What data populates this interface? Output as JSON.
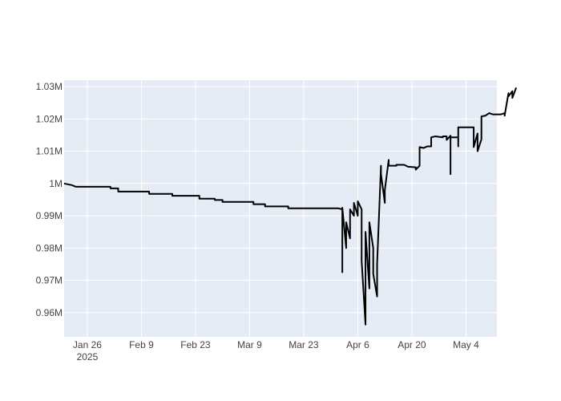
{
  "chart_data": {
    "type": "line",
    "title": "",
    "xlabel": "",
    "ylabel": "",
    "grid": true,
    "legend": "none",
    "colors": {
      "plot_background": "#e5ecf6",
      "grid": "#ffffff",
      "line": "#000000",
      "tick_text": "#444444"
    },
    "xlim": [
      "2025-01-20",
      "2025-05-12"
    ],
    "ylim": [
      952500,
      1032000
    ],
    "x_ticks": [
      {
        "value": "2025-01-26",
        "label": "Jan 26",
        "sublabel": "2025"
      },
      {
        "value": "2025-02-09",
        "label": "Feb 9"
      },
      {
        "value": "2025-02-23",
        "label": "Feb 23"
      },
      {
        "value": "2025-03-09",
        "label": "Mar 9"
      },
      {
        "value": "2025-03-23",
        "label": "Mar 23"
      },
      {
        "value": "2025-04-06",
        "label": "Apr 6"
      },
      {
        "value": "2025-04-20",
        "label": "Apr 20"
      },
      {
        "value": "2025-05-04",
        "label": "May 4"
      }
    ],
    "y_ticks": [
      {
        "value": 960000,
        "label": "0.96M"
      },
      {
        "value": 970000,
        "label": "0.97M"
      },
      {
        "value": 980000,
        "label": "0.98M"
      },
      {
        "value": 990000,
        "label": "0.99M"
      },
      {
        "value": 1000000,
        "label": "1M"
      },
      {
        "value": 1010000,
        "label": "1.01M"
      },
      {
        "value": 1020000,
        "label": "1.02M"
      },
      {
        "value": 1030000,
        "label": "1.03M"
      }
    ],
    "series": [
      {
        "color": "#000000",
        "points": [
          [
            "2025-01-20",
            1000000
          ],
          [
            "2025-01-22",
            999500
          ],
          [
            "2025-01-23",
            999000
          ],
          [
            "2025-01-24",
            999000
          ],
          [
            "2025-02-01",
            999000
          ],
          [
            "2025-02-01",
            998500
          ],
          [
            "2025-02-03",
            998500
          ],
          [
            "2025-02-03",
            997500
          ],
          [
            "2025-02-11",
            997500
          ],
          [
            "2025-02-11",
            996800
          ],
          [
            "2025-02-17",
            996800
          ],
          [
            "2025-02-17",
            996200
          ],
          [
            "2025-02-24",
            996200
          ],
          [
            "2025-02-24",
            995300
          ],
          [
            "2025-02-28",
            995300
          ],
          [
            "2025-02-28",
            994900
          ],
          [
            "2025-03-02",
            994900
          ],
          [
            "2025-03-02",
            994300
          ],
          [
            "2025-03-10",
            994300
          ],
          [
            "2025-03-10",
            993600
          ],
          [
            "2025-03-13",
            993600
          ],
          [
            "2025-03-13",
            992900
          ],
          [
            "2025-03-19",
            992900
          ],
          [
            "2025-03-19",
            992300
          ],
          [
            "2025-04-01",
            992300
          ],
          [
            "2025-04-02",
            992000
          ],
          [
            "2025-04-02",
            972500
          ],
          [
            "2025-04-02",
            992500
          ],
          [
            "2025-04-03",
            980000
          ],
          [
            "2025-04-03",
            988000
          ],
          [
            "2025-04-04",
            983000
          ],
          [
            "2025-04-04",
            992000
          ],
          [
            "2025-04-05",
            990000
          ],
          [
            "2025-04-05",
            994000
          ],
          [
            "2025-04-06",
            990000
          ],
          [
            "2025-04-06",
            994500
          ],
          [
            "2025-04-07",
            992000
          ],
          [
            "2025-04-07",
            976000
          ],
          [
            "2025-04-08",
            956300
          ],
          [
            "2025-04-08",
            985000
          ],
          [
            "2025-04-09",
            967500
          ],
          [
            "2025-04-09",
            988000
          ],
          [
            "2025-04-10",
            980000
          ],
          [
            "2025-04-10",
            972000
          ],
          [
            "2025-04-11",
            965000
          ],
          [
            "2025-04-11",
            975000
          ],
          [
            "2025-04-12",
            1005500
          ],
          [
            "2025-04-12",
            1003000
          ],
          [
            "2025-04-13",
            994000
          ],
          [
            "2025-04-13",
            998000
          ],
          [
            "2025-04-14",
            1007300
          ],
          [
            "2025-04-14",
            1005500
          ],
          [
            "2025-04-16",
            1005500
          ],
          [
            "2025-04-16",
            1005800
          ],
          [
            "2025-04-18",
            1005800
          ],
          [
            "2025-04-19",
            1005200
          ],
          [
            "2025-04-21",
            1005000
          ],
          [
            "2025-04-21",
            1004300
          ],
          [
            "2025-04-22",
            1005500
          ],
          [
            "2025-04-22",
            1011300
          ],
          [
            "2025-04-23",
            1011000
          ],
          [
            "2025-04-24",
            1011500
          ],
          [
            "2025-04-25",
            1011500
          ],
          [
            "2025-04-25",
            1014300
          ],
          [
            "2025-04-26",
            1014600
          ],
          [
            "2025-04-28",
            1014300
          ],
          [
            "2025-04-28",
            1014600
          ],
          [
            "2025-04-29",
            1014600
          ],
          [
            "2025-04-29",
            1013500
          ],
          [
            "2025-04-30",
            1014800
          ],
          [
            "2025-04-30",
            1002900
          ],
          [
            "2025-04-30",
            1014300
          ],
          [
            "2025-05-02",
            1014300
          ],
          [
            "2025-05-02",
            1011500
          ],
          [
            "2025-05-02",
            1017400
          ],
          [
            "2025-05-06",
            1017400
          ],
          [
            "2025-05-06",
            1011300
          ],
          [
            "2025-05-07",
            1015500
          ],
          [
            "2025-05-07",
            1010000
          ],
          [
            "2025-05-08",
            1013700
          ],
          [
            "2025-05-08",
            1020800
          ],
          [
            "2025-05-09",
            1021000
          ],
          [
            "2025-05-10",
            1021800
          ],
          [
            "2025-05-11",
            1021400
          ],
          [
            "2025-05-13",
            1021400
          ],
          [
            "2025-05-14",
            1021800
          ],
          [
            "2025-05-14",
            1021000
          ],
          [
            "2025-05-15",
            1028000
          ],
          [
            "2025-05-15",
            1027000
          ],
          [
            "2025-05-16",
            1028600
          ],
          [
            "2025-05-16",
            1026500
          ],
          [
            "2025-05-17",
            1029700
          ]
        ]
      }
    ]
  }
}
